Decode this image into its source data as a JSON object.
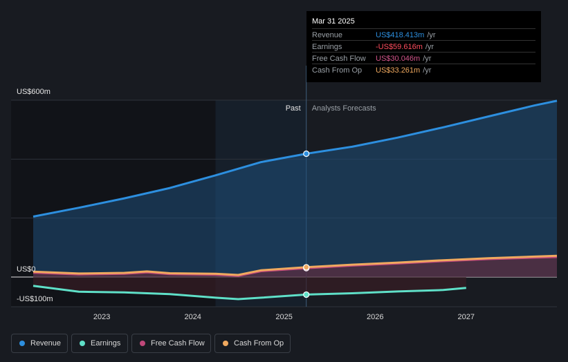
{
  "chart_data": {
    "type": "line",
    "y_axis": {
      "top_label": "US$600m",
      "zero_label": "US$0",
      "bottom_label": "-US$100m",
      "ylim": [
        -100,
        600
      ]
    },
    "x_ticks": [
      "2023",
      "2024",
      "2025",
      "2026",
      "2027"
    ],
    "divider": {
      "past_label": "Past",
      "forecast_label": "Analysts Forecasts"
    },
    "series": [
      {
        "name": "Revenue",
        "color": "#2d8fdf",
        "points": [
          [
            "2022-04-01",
            205
          ],
          [
            "2022-10-01",
            235
          ],
          [
            "2023-04-01",
            267
          ],
          [
            "2023-10-01",
            302
          ],
          [
            "2024-04-01",
            345
          ],
          [
            "2024-10-01",
            390
          ],
          [
            "2025-03-31",
            418.413
          ],
          [
            "2025-10-01",
            442
          ],
          [
            "2026-04-01",
            473
          ],
          [
            "2026-10-01",
            508
          ],
          [
            "2027-04-01",
            545
          ],
          [
            "2027-10-01",
            582
          ],
          [
            "2027-12-31",
            598
          ]
        ]
      },
      {
        "name": "Earnings",
        "color": "#5fe0c8",
        "points": [
          [
            "2022-04-01",
            -30
          ],
          [
            "2022-10-01",
            -50
          ],
          [
            "2023-04-01",
            -52
          ],
          [
            "2023-10-01",
            -58
          ],
          [
            "2024-04-01",
            -70
          ],
          [
            "2024-07-01",
            -75
          ],
          [
            "2024-10-01",
            -70
          ],
          [
            "2025-03-31",
            -59.616
          ],
          [
            "2025-10-01",
            -55
          ],
          [
            "2026-04-01",
            -49
          ],
          [
            "2026-10-01",
            -44
          ],
          [
            "2027-01-01",
            -37
          ]
        ]
      },
      {
        "name": "Free Cash Flow",
        "color": "#c0487a",
        "points": [
          [
            "2022-04-01",
            15
          ],
          [
            "2022-10-01",
            9
          ],
          [
            "2023-04-01",
            11
          ],
          [
            "2023-07-01",
            16
          ],
          [
            "2023-10-01",
            10
          ],
          [
            "2024-04-01",
            8
          ],
          [
            "2024-07-01",
            4
          ],
          [
            "2024-10-01",
            20
          ],
          [
            "2025-03-31",
            30.046
          ],
          [
            "2025-10-01",
            39
          ],
          [
            "2026-04-01",
            46
          ],
          [
            "2026-10-01",
            54
          ],
          [
            "2027-04-01",
            61
          ],
          [
            "2027-12-31",
            68
          ]
        ]
      },
      {
        "name": "Cash From Op",
        "color": "#f0a95f",
        "points": [
          [
            "2022-04-01",
            18
          ],
          [
            "2022-10-01",
            12
          ],
          [
            "2023-04-01",
            14
          ],
          [
            "2023-07-01",
            19
          ],
          [
            "2023-10-01",
            13
          ],
          [
            "2024-04-01",
            11
          ],
          [
            "2024-07-01",
            7
          ],
          [
            "2024-10-01",
            23
          ],
          [
            "2025-03-31",
            33.261
          ],
          [
            "2025-10-01",
            42
          ],
          [
            "2026-04-01",
            49
          ],
          [
            "2026-10-01",
            57
          ],
          [
            "2027-04-01",
            64
          ],
          [
            "2027-12-31",
            72
          ]
        ]
      }
    ]
  },
  "tooltip": {
    "date": "Mar 31 2025",
    "rows": [
      {
        "label": "Revenue",
        "value": "US$418.413m",
        "unit": "/yr",
        "color": "#2d8fdf"
      },
      {
        "label": "Earnings",
        "value": "-US$59.616m",
        "unit": "/yr",
        "color": "#ff4d5e"
      },
      {
        "label": "Free Cash Flow",
        "value": "US$30.046m",
        "unit": "/yr",
        "color": "#d2558b"
      },
      {
        "label": "Cash From Op",
        "value": "US$33.261m",
        "unit": "/yr",
        "color": "#f0a95f"
      }
    ]
  },
  "legend": [
    {
      "label": "Revenue",
      "color": "#2d8fdf"
    },
    {
      "label": "Earnings",
      "color": "#5fe0c8"
    },
    {
      "label": "Free Cash Flow",
      "color": "#c0487a"
    },
    {
      "label": "Cash From Op",
      "color": "#f0a95f"
    }
  ]
}
